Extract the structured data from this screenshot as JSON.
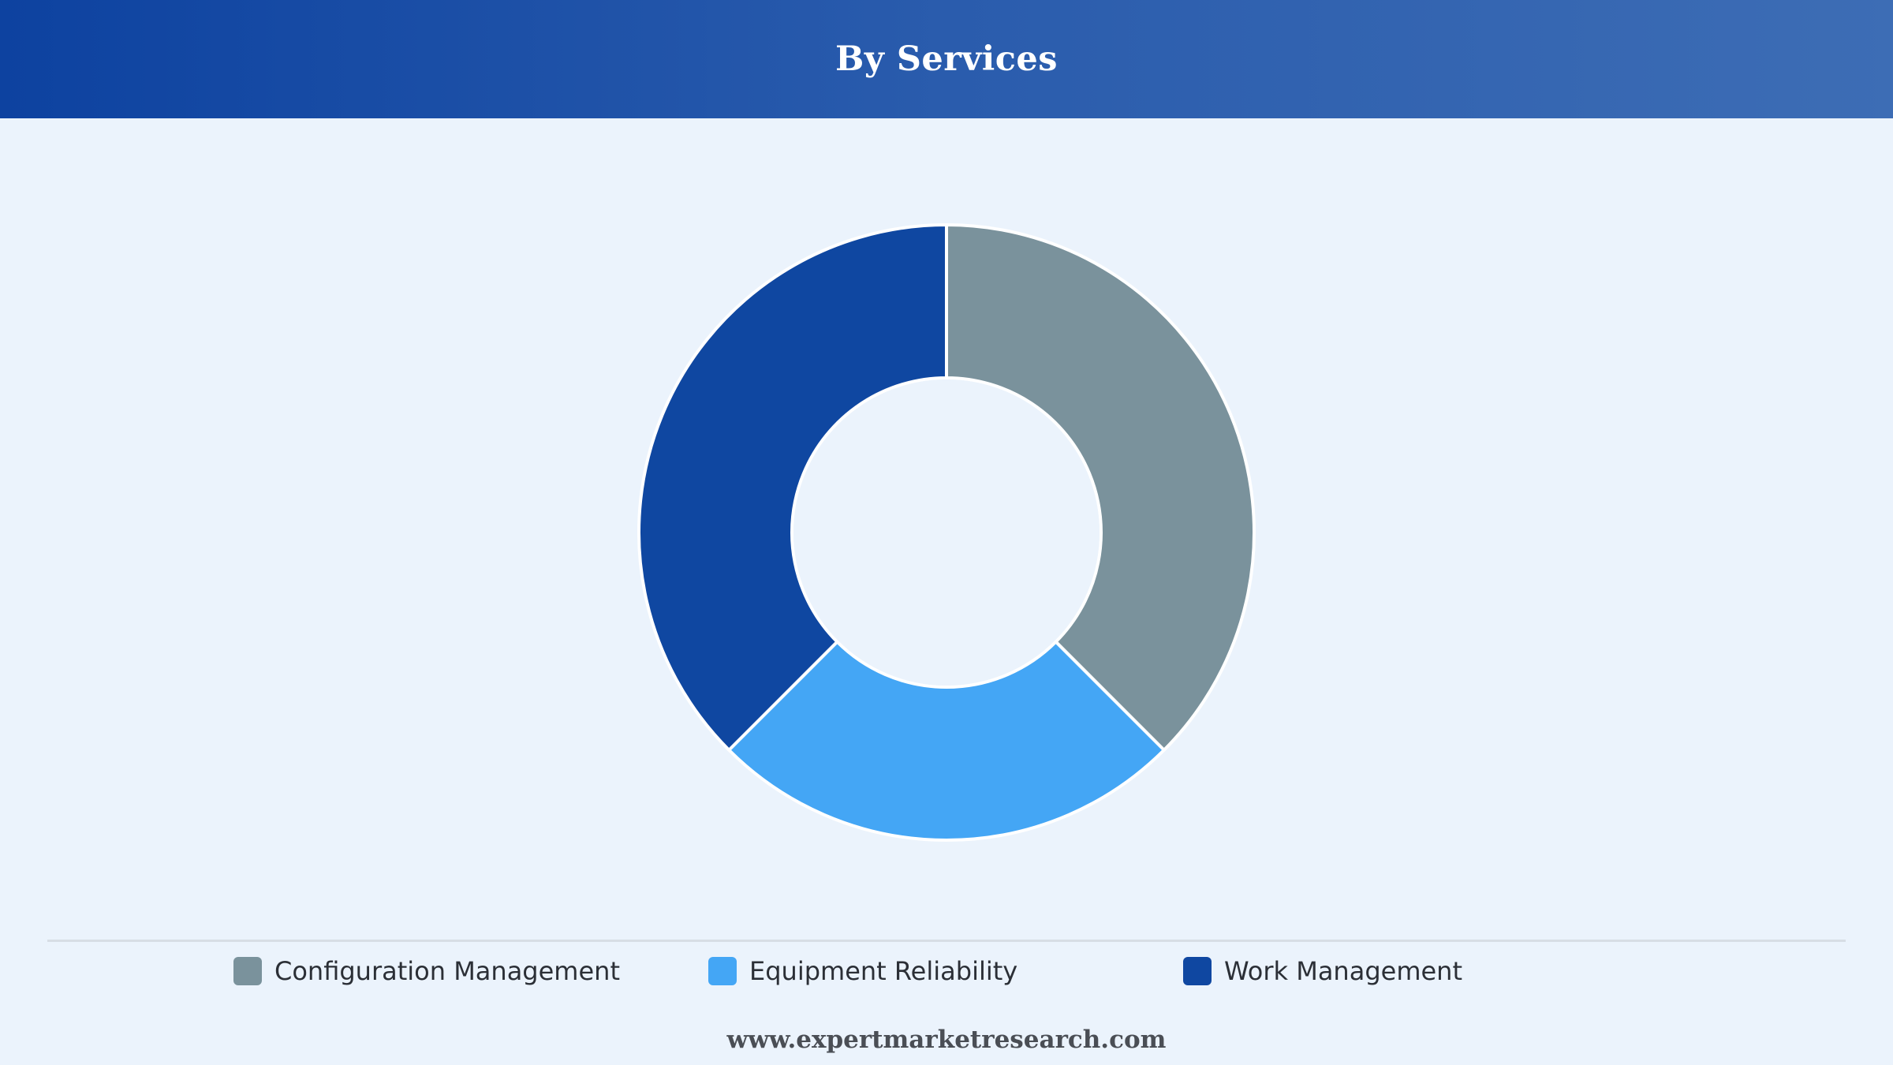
{
  "header": {
    "title": "By Services"
  },
  "chart_data": {
    "type": "pie",
    "variant": "donut",
    "title": "By Services",
    "categories": [
      "Configuration Management",
      "Equipment Reliability",
      "Work Management"
    ],
    "values": [
      37.5,
      25,
      37.5
    ],
    "unit": "%",
    "colors": [
      "#7a929c",
      "#44a6f5",
      "#0f47a1"
    ],
    "legend_position": "bottom"
  },
  "legend": {
    "items": [
      {
        "label": "Configuration Management",
        "color": "#7a929c"
      },
      {
        "label": "Equipment Reliability",
        "color": "#44a6f5"
      },
      {
        "label": "Work Management",
        "color": "#0f47a1"
      }
    ]
  },
  "footer": {
    "website": "www.expertmarketresearch.com"
  }
}
